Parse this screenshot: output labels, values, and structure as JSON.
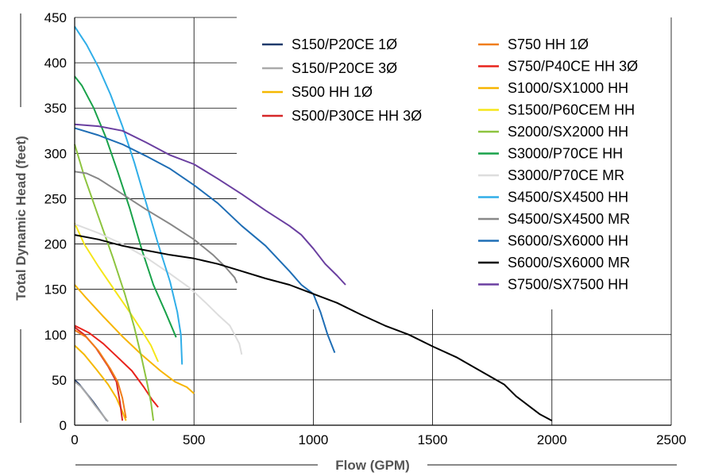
{
  "chart_data": {
    "type": "line",
    "title": "",
    "xlabel": "Flow (GPM)",
    "ylabel": "Total Dynamic Head (feet)",
    "xlim": [
      0,
      2500
    ],
    "ylim": [
      0,
      450
    ],
    "xticks": [
      0,
      500,
      1000,
      1500,
      2000,
      2500
    ],
    "yticks": [
      0,
      50,
      100,
      150,
      200,
      250,
      300,
      350,
      400,
      450
    ],
    "grid": "partial",
    "legend_position": "top-right",
    "series": [
      {
        "name": "S150/P20CE 1Ø",
        "color": "#1f3a6b",
        "points": [
          [
            0,
            50
          ],
          [
            20,
            45
          ],
          [
            50,
            35
          ],
          [
            80,
            25
          ],
          [
            110,
            14
          ],
          [
            135,
            5
          ]
        ]
      },
      {
        "name": "S150/P20CE 3Ø",
        "color": "#aaaaaa",
        "points": [
          [
            0,
            48
          ],
          [
            25,
            43
          ],
          [
            55,
            33
          ],
          [
            85,
            22
          ],
          [
            115,
            12
          ],
          [
            140,
            4
          ]
        ]
      },
      {
        "name": "S500 HH 1Ø",
        "color": "#f5b800",
        "points": [
          [
            0,
            88
          ],
          [
            40,
            78
          ],
          [
            90,
            62
          ],
          [
            140,
            45
          ],
          [
            175,
            30
          ],
          [
            200,
            15
          ],
          [
            215,
            5
          ]
        ]
      },
      {
        "name": "S500/P30CE HH 3Ø",
        "color": "#d62728",
        "points": [
          [
            0,
            108
          ],
          [
            40,
            100
          ],
          [
            90,
            85
          ],
          [
            140,
            65
          ],
          [
            175,
            48
          ],
          [
            190,
            25
          ],
          [
            200,
            5
          ]
        ]
      },
      {
        "name": "S750 HH 1Ø",
        "color": "#f07d1a",
        "points": [
          [
            0,
            105
          ],
          [
            50,
            97
          ],
          [
            100,
            82
          ],
          [
            150,
            62
          ],
          [
            180,
            48
          ],
          [
            200,
            30
          ],
          [
            215,
            8
          ]
        ]
      },
      {
        "name": "S750/P40CE HH 3Ø",
        "color": "#e8231c",
        "points": [
          [
            0,
            110
          ],
          [
            60,
            102
          ],
          [
            120,
            90
          ],
          [
            180,
            75
          ],
          [
            240,
            60
          ],
          [
            290,
            42
          ],
          [
            325,
            28
          ],
          [
            350,
            20
          ]
        ]
      },
      {
        "name": "S1000/SX1000 HH",
        "color": "#f7b500",
        "points": [
          [
            0,
            155
          ],
          [
            50,
            140
          ],
          [
            120,
            120
          ],
          [
            200,
            98
          ],
          [
            280,
            78
          ],
          [
            360,
            60
          ],
          [
            420,
            48
          ],
          [
            470,
            42
          ],
          [
            500,
            35
          ]
        ]
      },
      {
        "name": "S1500/P60CEM HH",
        "color": "#f5e61a",
        "points": [
          [
            0,
            223
          ],
          [
            40,
            200
          ],
          [
            100,
            175
          ],
          [
            170,
            148
          ],
          [
            230,
            125
          ],
          [
            280,
            105
          ],
          [
            320,
            88
          ],
          [
            350,
            70
          ]
        ]
      },
      {
        "name": "S2000/SX2000 HH",
        "color": "#8dc43f",
        "points": [
          [
            0,
            310
          ],
          [
            40,
            275
          ],
          [
            100,
            230
          ],
          [
            160,
            185
          ],
          [
            210,
            145
          ],
          [
            250,
            108
          ],
          [
            280,
            75
          ],
          [
            305,
            45
          ],
          [
            320,
            25
          ],
          [
            330,
            5
          ]
        ]
      },
      {
        "name": "S3000/P70CE HH",
        "color": "#19a24a",
        "points": [
          [
            0,
            385
          ],
          [
            30,
            375
          ],
          [
            80,
            350
          ],
          [
            130,
            318
          ],
          [
            180,
            280
          ],
          [
            230,
            240
          ],
          [
            280,
            195
          ],
          [
            330,
            155
          ],
          [
            380,
            125
          ],
          [
            425,
            97
          ]
        ]
      },
      {
        "name": "S3000/P70CE MR",
        "color": "#dddddd",
        "points": [
          [
            0,
            222
          ],
          [
            100,
            212
          ],
          [
            200,
            200
          ],
          [
            300,
            185
          ],
          [
            400,
            167
          ],
          [
            480,
            152
          ],
          [
            550,
            135
          ],
          [
            600,
            122
          ],
          [
            650,
            110
          ],
          [
            690,
            90
          ],
          [
            700,
            78
          ]
        ]
      },
      {
        "name": "S4500/SX4500 HH",
        "color": "#30aee8",
        "points": [
          [
            0,
            440
          ],
          [
            50,
            420
          ],
          [
            100,
            395
          ],
          [
            150,
            365
          ],
          [
            200,
            330
          ],
          [
            250,
            290
          ],
          [
            300,
            245
          ],
          [
            350,
            200
          ],
          [
            400,
            158
          ],
          [
            430,
            125
          ],
          [
            445,
            100
          ],
          [
            450,
            67
          ]
        ]
      },
      {
        "name": "S4500/SX4500 MR",
        "color": "#888888",
        "points": [
          [
            0,
            280
          ],
          [
            50,
            278
          ],
          [
            100,
            272
          ],
          [
            200,
            255
          ],
          [
            300,
            238
          ],
          [
            400,
            222
          ],
          [
            500,
            205
          ],
          [
            580,
            188
          ],
          [
            630,
            175
          ],
          [
            670,
            163
          ],
          [
            680,
            157
          ]
        ]
      },
      {
        "name": "S6000/SX6000 HH",
        "color": "#1f6eb5",
        "points": [
          [
            0,
            328
          ],
          [
            100,
            320
          ],
          [
            200,
            310
          ],
          [
            300,
            297
          ],
          [
            400,
            283
          ],
          [
            500,
            265
          ],
          [
            600,
            245
          ],
          [
            700,
            220
          ],
          [
            800,
            198
          ],
          [
            900,
            170
          ],
          [
            950,
            155
          ],
          [
            1000,
            145
          ],
          [
            1030,
            125
          ],
          [
            1060,
            100
          ],
          [
            1090,
            80
          ]
        ]
      },
      {
        "name": "S6000/SX6000 MR",
        "color": "#000000",
        "points": [
          [
            0,
            210
          ],
          [
            100,
            205
          ],
          [
            200,
            198
          ],
          [
            300,
            193
          ],
          [
            400,
            188
          ],
          [
            500,
            184
          ],
          [
            600,
            178
          ],
          [
            700,
            170
          ],
          [
            800,
            162
          ],
          [
            900,
            155
          ],
          [
            1000,
            145
          ],
          [
            1100,
            135
          ],
          [
            1200,
            122
          ],
          [
            1300,
            110
          ],
          [
            1400,
            100
          ],
          [
            1500,
            87
          ],
          [
            1600,
            75
          ],
          [
            1700,
            60
          ],
          [
            1800,
            45
          ],
          [
            1850,
            32
          ],
          [
            1900,
            22
          ],
          [
            1950,
            12
          ],
          [
            2000,
            5
          ]
        ]
      },
      {
        "name": "S7500/SX7500 HH",
        "color": "#6a3fa0",
        "points": [
          [
            0,
            332
          ],
          [
            100,
            330
          ],
          [
            200,
            325
          ],
          [
            300,
            312
          ],
          [
            400,
            298
          ],
          [
            500,
            288
          ],
          [
            600,
            272
          ],
          [
            700,
            255
          ],
          [
            800,
            237
          ],
          [
            900,
            220
          ],
          [
            950,
            210
          ],
          [
            1000,
            195
          ],
          [
            1050,
            178
          ],
          [
            1100,
            165
          ],
          [
            1135,
            155
          ]
        ]
      }
    ]
  }
}
